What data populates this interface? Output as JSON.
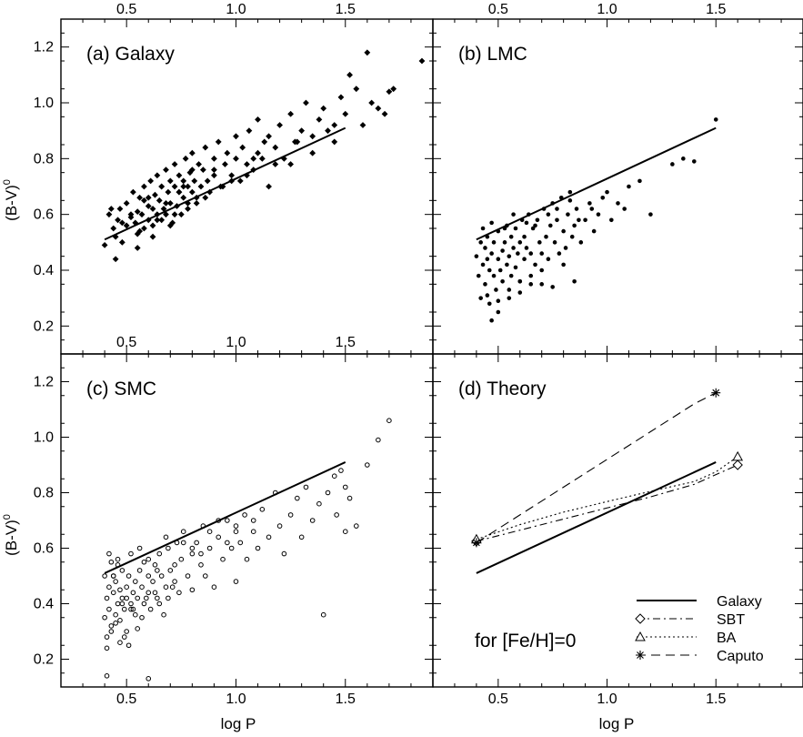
{
  "figure": {
    "xlabel": "log P",
    "ylabel": "(B-V)",
    "ylabel_sup": "0",
    "xlim": [
      0.2,
      1.9
    ],
    "ylim": [
      0.1,
      1.3
    ],
    "xticks": [
      "0.5",
      "1.0",
      "1.5"
    ],
    "xtick_values": [
      0.5,
      1.0,
      1.5
    ],
    "yticks": [
      "0.2",
      "0.4",
      "0.6",
      "0.8",
      "1.0",
      "1.2"
    ],
    "ytick_values": [
      0.2,
      0.4,
      0.6,
      0.8,
      1.0,
      1.2
    ],
    "reference_line": {
      "x": [
        0.4,
        1.5
      ],
      "y": [
        0.51,
        0.91
      ]
    }
  },
  "chart_data": [
    {
      "type": "scatter",
      "panel": "a",
      "title": "(a) Galaxy",
      "marker": "filled-diamond",
      "xlim": [
        0.2,
        1.9
      ],
      "ylim": [
        0.1,
        1.3
      ],
      "series": [
        {
          "x": [
            0.4,
            0.42,
            0.44,
            0.45,
            0.46,
            0.47,
            0.48,
            0.5,
            0.5,
            0.52,
            0.53,
            0.54,
            0.55,
            0.55,
            0.56,
            0.57,
            0.58,
            0.58,
            0.6,
            0.6,
            0.61,
            0.62,
            0.62,
            0.63,
            0.64,
            0.64,
            0.65,
            0.66,
            0.66,
            0.67,
            0.68,
            0.68,
            0.69,
            0.7,
            0.7,
            0.71,
            0.72,
            0.72,
            0.73,
            0.74,
            0.74,
            0.75,
            0.76,
            0.76,
            0.77,
            0.78,
            0.78,
            0.79,
            0.8,
            0.8,
            0.81,
            0.82,
            0.83,
            0.84,
            0.85,
            0.86,
            0.87,
            0.88,
            0.9,
            0.9,
            0.92,
            0.93,
            0.95,
            0.96,
            0.98,
            1.0,
            1.0,
            1.02,
            1.03,
            1.05,
            1.06,
            1.08,
            1.1,
            1.1,
            1.12,
            1.13,
            1.15,
            1.18,
            1.2,
            1.22,
            1.25,
            1.27,
            1.3,
            1.32,
            1.35,
            1.38,
            1.4,
            1.42,
            1.45,
            1.48,
            1.5,
            1.52,
            1.55,
            1.58,
            1.6,
            1.62,
            1.65,
            1.68,
            1.7,
            1.72,
            1.85,
            0.45,
            0.48,
            0.52,
            0.56,
            0.6,
            0.64,
            0.68,
            0.72,
            0.76,
            0.8,
            0.55,
            0.62,
            0.7,
            0.78,
            0.86,
            0.94,
            1.05,
            1.15,
            1.25,
            0.43,
            0.58,
            0.66,
            0.74,
            0.82,
            0.9,
            0.98,
            1.08,
            1.18,
            1.28,
            1.35,
            1.45
          ],
          "y": [
            0.49,
            0.6,
            0.55,
            0.52,
            0.58,
            0.62,
            0.5,
            0.56,
            0.64,
            0.59,
            0.68,
            0.57,
            0.61,
            0.53,
            0.66,
            0.6,
            0.7,
            0.55,
            0.63,
            0.58,
            0.72,
            0.62,
            0.56,
            0.67,
            0.6,
            0.74,
            0.65,
            0.58,
            0.7,
            0.62,
            0.76,
            0.6,
            0.68,
            0.64,
            0.72,
            0.57,
            0.7,
            0.78,
            0.63,
            0.68,
            0.74,
            0.6,
            0.72,
            0.66,
            0.8,
            0.7,
            0.64,
            0.75,
            0.68,
            0.82,
            0.72,
            0.66,
            0.78,
            0.7,
            0.76,
            0.84,
            0.72,
            0.68,
            0.8,
            0.74,
            0.86,
            0.7,
            0.78,
            0.82,
            0.74,
            0.8,
            0.88,
            0.72,
            0.84,
            0.78,
            0.9,
            0.76,
            0.82,
            0.94,
            0.8,
            0.86,
            0.88,
            0.84,
            0.92,
            0.8,
            0.96,
            0.86,
            0.9,
            1.0,
            0.88,
            0.94,
            0.98,
            0.9,
            0.86,
            1.02,
            0.96,
            1.1,
            1.05,
            0.92,
            1.18,
            1.0,
            0.98,
            0.96,
            1.04,
            1.05,
            1.15,
            0.44,
            0.57,
            0.6,
            0.54,
            0.66,
            0.58,
            0.64,
            0.6,
            0.7,
            0.76,
            0.48,
            0.52,
            0.56,
            0.62,
            0.66,
            0.7,
            0.74,
            0.7,
            0.78,
            0.62,
            0.65,
            0.7,
            0.68,
            0.64,
            0.76,
            0.72,
            0.8,
            0.78,
            0.86,
            0.82,
            0.92
          ]
        }
      ]
    },
    {
      "type": "scatter",
      "panel": "b",
      "title": "(b) LMC",
      "marker": "filled-circle",
      "xlim": [
        0.2,
        1.9
      ],
      "ylim": [
        0.1,
        1.3
      ],
      "series": [
        {
          "x": [
            0.4,
            0.41,
            0.42,
            0.42,
            0.43,
            0.44,
            0.44,
            0.45,
            0.45,
            0.46,
            0.46,
            0.47,
            0.48,
            0.48,
            0.49,
            0.5,
            0.5,
            0.51,
            0.52,
            0.52,
            0.53,
            0.54,
            0.54,
            0.55,
            0.56,
            0.56,
            0.57,
            0.58,
            0.58,
            0.59,
            0.6,
            0.6,
            0.61,
            0.62,
            0.62,
            0.63,
            0.64,
            0.65,
            0.66,
            0.67,
            0.68,
            0.69,
            0.7,
            0.71,
            0.72,
            0.73,
            0.74,
            0.75,
            0.76,
            0.77,
            0.78,
            0.79,
            0.8,
            0.81,
            0.82,
            0.83,
            0.84,
            0.85,
            0.86,
            0.88,
            0.9,
            0.92,
            0.94,
            0.96,
            0.98,
            1.0,
            1.02,
            1.05,
            1.08,
            1.1,
            1.15,
            1.2,
            1.3,
            1.35,
            1.4,
            1.5,
            0.45,
            0.5,
            0.55,
            0.6,
            0.65,
            0.7,
            0.75,
            0.8,
            0.85,
            0.43,
            0.47,
            0.53,
            0.57,
            0.63,
            0.67,
            0.73,
            0.77,
            0.83,
            0.87,
            0.93,
            0.47,
            0.5,
            0.55,
            0.6,
            0.65,
            0.7
          ],
          "y": [
            0.45,
            0.38,
            0.5,
            0.3,
            0.42,
            0.48,
            0.35,
            0.44,
            0.52,
            0.4,
            0.28,
            0.46,
            0.38,
            0.5,
            0.33,
            0.44,
            0.54,
            0.4,
            0.47,
            0.36,
            0.5,
            0.42,
            0.56,
            0.45,
            0.38,
            0.52,
            0.48,
            0.41,
            0.55,
            0.46,
            0.5,
            0.36,
            0.58,
            0.44,
            0.52,
            0.48,
            0.6,
            0.46,
            0.55,
            0.42,
            0.58,
            0.5,
            0.46,
            0.62,
            0.52,
            0.44,
            0.56,
            0.64,
            0.5,
            0.58,
            0.46,
            0.66,
            0.54,
            0.48,
            0.6,
            0.68,
            0.52,
            0.56,
            0.62,
            0.5,
            0.58,
            0.64,
            0.54,
            0.6,
            0.66,
            0.68,
            0.58,
            0.64,
            0.62,
            0.7,
            0.72,
            0.6,
            0.78,
            0.8,
            0.79,
            0.94,
            0.31,
            0.29,
            0.33,
            0.36,
            0.38,
            0.4,
            0.34,
            0.42,
            0.36,
            0.55,
            0.57,
            0.55,
            0.6,
            0.57,
            0.56,
            0.6,
            0.62,
            0.65,
            0.58,
            0.62,
            0.22,
            0.25,
            0.3,
            0.32,
            0.35,
            0.35
          ]
        }
      ]
    },
    {
      "type": "scatter",
      "panel": "c",
      "title": "(c) SMC",
      "marker": "open-circle",
      "xlim": [
        0.2,
        1.9
      ],
      "ylim": [
        0.1,
        1.3
      ],
      "series": [
        {
          "x": [
            0.4,
            0.4,
            0.41,
            0.41,
            0.42,
            0.42,
            0.43,
            0.43,
            0.44,
            0.44,
            0.45,
            0.45,
            0.46,
            0.46,
            0.47,
            0.47,
            0.48,
            0.48,
            0.49,
            0.5,
            0.5,
            0.51,
            0.52,
            0.52,
            0.53,
            0.54,
            0.54,
            0.55,
            0.56,
            0.57,
            0.58,
            0.58,
            0.6,
            0.6,
            0.62,
            0.63,
            0.64,
            0.65,
            0.66,
            0.68,
            0.69,
            0.7,
            0.72,
            0.73,
            0.74,
            0.75,
            0.76,
            0.78,
            0.8,
            0.8,
            0.82,
            0.84,
            0.85,
            0.86,
            0.88,
            0.9,
            0.92,
            0.94,
            0.96,
            0.98,
            1.0,
            1.0,
            1.02,
            1.05,
            1.08,
            1.1,
            1.12,
            1.15,
            1.18,
            1.2,
            1.22,
            1.25,
            1.28,
            1.3,
            1.32,
            1.35,
            1.38,
            1.4,
            1.42,
            1.45,
            1.46,
            1.48,
            1.5,
            1.5,
            1.52,
            1.55,
            1.6,
            1.65,
            1.7,
            0.41,
            0.43,
            0.45,
            0.47,
            0.49,
            0.51,
            0.53,
            0.55,
            0.57,
            0.59,
            0.61,
            0.63,
            0.65,
            0.67,
            0.69,
            0.71,
            0.42,
            0.44,
            0.46,
            0.48,
            0.5,
            0.52,
            0.56,
            0.6,
            0.64,
            0.68,
            0.72,
            0.76,
            0.8,
            0.84,
            0.88,
            0.92,
            0.96,
            1.0,
            1.04,
            1.08,
            0.41,
            0.6
          ],
          "y": [
            0.35,
            0.5,
            0.42,
            0.28,
            0.46,
            0.38,
            0.55,
            0.32,
            0.44,
            0.5,
            0.36,
            0.48,
            0.4,
            0.56,
            0.34,
            0.45,
            0.42,
            0.52,
            0.38,
            0.46,
            0.3,
            0.5,
            0.4,
            0.58,
            0.44,
            0.36,
            0.48,
            0.42,
            0.52,
            0.46,
            0.4,
            0.55,
            0.44,
            0.5,
            0.48,
            0.54,
            0.42,
            0.58,
            0.5,
            0.46,
            0.6,
            0.52,
            0.48,
            0.62,
            0.44,
            0.56,
            0.66,
            0.5,
            0.58,
            0.45,
            0.62,
            0.54,
            0.68,
            0.5,
            0.6,
            0.46,
            0.64,
            0.56,
            0.7,
            0.6,
            0.48,
            0.66,
            0.62,
            0.56,
            0.7,
            0.6,
            0.74,
            0.64,
            0.8,
            0.68,
            0.58,
            0.72,
            0.78,
            0.64,
            0.82,
            0.7,
            0.76,
            0.36,
            0.8,
            0.86,
            0.72,
            0.88,
            0.66,
            0.82,
            0.78,
            0.68,
            0.9,
            0.99,
            1.06,
            0.24,
            0.3,
            0.33,
            0.26,
            0.28,
            0.25,
            0.38,
            0.31,
            0.35,
            0.42,
            0.38,
            0.44,
            0.4,
            0.36,
            0.42,
            0.46,
            0.58,
            0.5,
            0.54,
            0.4,
            0.42,
            0.38,
            0.6,
            0.56,
            0.52,
            0.64,
            0.54,
            0.62,
            0.6,
            0.58,
            0.66,
            0.7,
            0.62,
            0.68,
            0.72,
            0.66,
            0.14,
            0.13
          ]
        }
      ]
    },
    {
      "type": "line",
      "panel": "d",
      "title": "(d) Theory",
      "annotation": "for [Fe/H]=0",
      "xlim": [
        0.2,
        1.9
      ],
      "ylim": [
        0.1,
        1.3
      ],
      "series": [
        {
          "name": "Galaxy",
          "style": "solid",
          "marker": "none",
          "x": [
            0.4,
            1.5
          ],
          "y": [
            0.51,
            0.91
          ],
          "marker_x": [],
          "marker_y": []
        },
        {
          "name": "SBT",
          "style": "dashdot",
          "marker": "diamond",
          "x": [
            0.4,
            0.6,
            0.8,
            1.0,
            1.2,
            1.4,
            1.5,
            1.6
          ],
          "y": [
            0.625,
            0.665,
            0.705,
            0.745,
            0.785,
            0.83,
            0.865,
            0.9
          ],
          "marker_x": [
            0.4,
            1.6
          ],
          "marker_y": [
            0.625,
            0.9
          ]
        },
        {
          "name": "BA",
          "style": "dotted",
          "marker": "triangle",
          "x": [
            0.4,
            0.6,
            0.8,
            1.0,
            1.2,
            1.4,
            1.5,
            1.6
          ],
          "y": [
            0.632,
            0.685,
            0.73,
            0.768,
            0.805,
            0.84,
            0.875,
            0.93
          ],
          "marker_x": [
            0.4,
            1.6
          ],
          "marker_y": [
            0.632,
            0.93
          ]
        },
        {
          "name": "Caputo",
          "style": "dashed",
          "marker": "asterisk",
          "x": [
            0.4,
            0.6,
            0.8,
            1.0,
            1.2,
            1.4,
            1.5
          ],
          "y": [
            0.62,
            0.72,
            0.82,
            0.92,
            1.02,
            1.12,
            1.16
          ],
          "marker_x": [
            0.4,
            1.5
          ],
          "marker_y": [
            0.62,
            1.16
          ]
        }
      ]
    }
  ]
}
